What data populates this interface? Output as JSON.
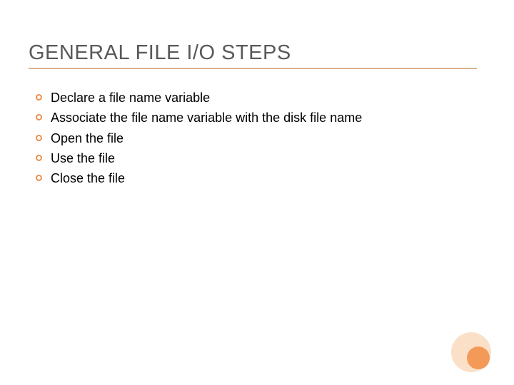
{
  "slide": {
    "title": "GENERAL FILE I/O STEPS",
    "title_color": "#595959",
    "title_fontsize": 29,
    "underline_color": "#d9b28f",
    "bullet_border_color": "#ec8f4e",
    "text_color": "#000000",
    "body_fontsize": 18,
    "background_color": "#ffffff",
    "items": [
      "Declare a file name variable",
      " Associate the file name variable with the     disk file name",
      " Open the file",
      " Use the file",
      " Close the file"
    ],
    "decor": {
      "big_circle_color": "#fbe0c8",
      "small_circle_color": "#f39a58"
    }
  }
}
